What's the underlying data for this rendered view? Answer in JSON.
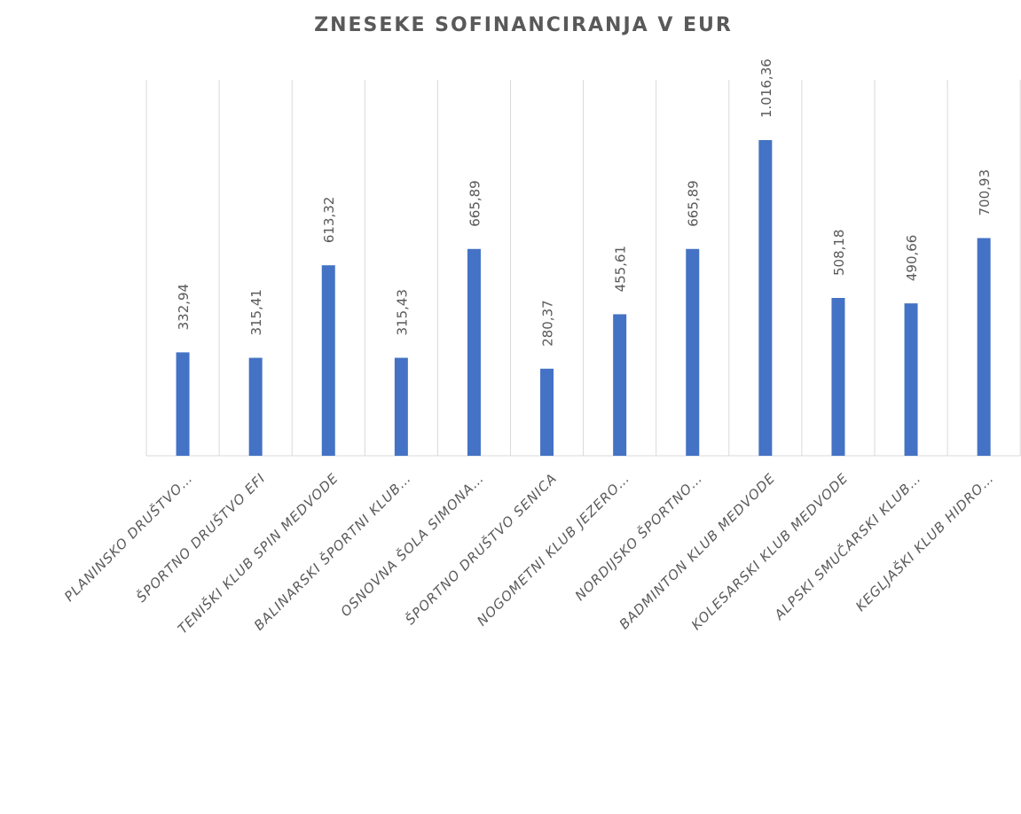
{
  "chart_data": {
    "type": "bar",
    "title": "ZNESEKE SOFINANCIRANJA V EUR",
    "categories": [
      "PLANINSKO DRUŠTVO…",
      "ŠPORTNO DRUŠTVO EFI",
      "TENIŠKI KLUB SPIN MEDVODE",
      "BALINARSKI ŠPORTNI KLUB…",
      "OSNOVNA ŠOLA SIMONA…",
      "ŠPORTNO DRUŠTVO SENICA",
      "NOGOMETNI KLUB JEZERO…",
      "NORDIJSKO ŠPORTNO…",
      "BADMINTON KLUB MEDVODE",
      "KOLESARSKI KLUB MEDVODE",
      "ALPSKI SMUČARSKI KLUB…",
      "KEGLJAŠKI KLUB HIDRO…"
    ],
    "values": [
      332.94,
      315.41,
      613.32,
      315.43,
      665.89,
      280.37,
      455.61,
      665.89,
      1016.36,
      508.18,
      490.66,
      700.93
    ],
    "value_labels": [
      "332,94",
      "315,41",
      "613,32",
      "315,43",
      "665,89",
      "280,37",
      "455,61",
      "665,89",
      "1.016,36",
      "508,18",
      "490,66",
      "700,93"
    ],
    "color": "#4472c4",
    "grid": true
  }
}
